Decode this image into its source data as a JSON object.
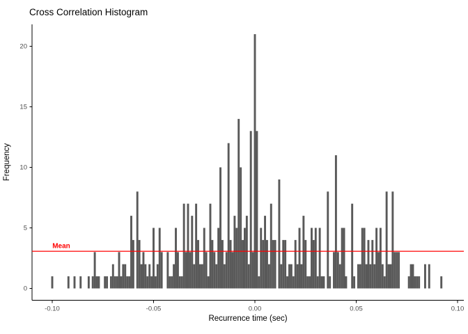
{
  "title": "Cross Correlation Histogram",
  "colors": {
    "bar": "#595959",
    "mean_line": "#FF0000",
    "mean_label": "#FF0000",
    "axis_line": "#000000",
    "tick_label": "#4D4D4D",
    "title_text": "#000000",
    "background": "#FFFFFF"
  },
  "chart_data": {
    "type": "bar",
    "subtype": "histogram",
    "title": "Cross Correlation Histogram",
    "xlabel": "Recurrence time (sec)",
    "ylabel": "Frequency",
    "grid": "off",
    "legend": "none",
    "bin_width": 0.001,
    "xlim": [
      -0.11,
      0.103
    ],
    "ylim": [
      0,
      21.8
    ],
    "x_ticks": [
      {
        "value": -0.1,
        "label": "-0.10"
      },
      {
        "value": -0.05,
        "label": "-0.05"
      },
      {
        "value": 0.0,
        "label": "0.00"
      },
      {
        "value": 0.05,
        "label": "0.05"
      },
      {
        "value": 0.1,
        "label": "0.10"
      }
    ],
    "y_ticks": [
      {
        "value": 0,
        "label": "0"
      },
      {
        "value": 5,
        "label": "5"
      },
      {
        "value": 10,
        "label": "10"
      },
      {
        "value": 15,
        "label": "15"
      },
      {
        "value": 20,
        "label": "20"
      }
    ],
    "mean": {
      "label": "Mean",
      "value": 3.07
    },
    "bins": [
      [
        -0.1,
        1
      ],
      [
        -0.092,
        1
      ],
      [
        -0.089,
        1
      ],
      [
        -0.086,
        1
      ],
      [
        -0.082,
        1
      ],
      [
        -0.08,
        1
      ],
      [
        -0.079,
        3
      ],
      [
        -0.078,
        1
      ],
      [
        -0.077,
        1
      ],
      [
        -0.074,
        1
      ],
      [
        -0.073,
        1
      ],
      [
        -0.071,
        1
      ],
      [
        -0.07,
        2
      ],
      [
        -0.069,
        1
      ],
      [
        -0.068,
        1
      ],
      [
        -0.067,
        3
      ],
      [
        -0.066,
        1
      ],
      [
        -0.065,
        2
      ],
      [
        -0.064,
        2
      ],
      [
        -0.063,
        1
      ],
      [
        -0.062,
        1
      ],
      [
        -0.061,
        6
      ],
      [
        -0.06,
        4
      ],
      [
        -0.058,
        8
      ],
      [
        -0.057,
        4
      ],
      [
        -0.056,
        2
      ],
      [
        -0.055,
        3
      ],
      [
        -0.054,
        2
      ],
      [
        -0.053,
        1
      ],
      [
        -0.052,
        2
      ],
      [
        -0.051,
        1
      ],
      [
        -0.05,
        5
      ],
      [
        -0.049,
        1
      ],
      [
        -0.048,
        2
      ],
      [
        -0.047,
        5
      ],
      [
        -0.046,
        3
      ],
      [
        -0.043,
        3
      ],
      [
        -0.042,
        1
      ],
      [
        -0.041,
        1
      ],
      [
        -0.04,
        2
      ],
      [
        -0.039,
        5
      ],
      [
        -0.038,
        3
      ],
      [
        -0.037,
        1
      ],
      [
        -0.036,
        1
      ],
      [
        -0.035,
        7
      ],
      [
        -0.034,
        3
      ],
      [
        -0.033,
        7
      ],
      [
        -0.032,
        3
      ],
      [
        -0.031,
        6
      ],
      [
        -0.03,
        2
      ],
      [
        -0.029,
        7
      ],
      [
        -0.028,
        4
      ],
      [
        -0.027,
        2
      ],
      [
        -0.026,
        2
      ],
      [
        -0.025,
        5
      ],
      [
        -0.024,
        3
      ],
      [
        -0.023,
        1
      ],
      [
        -0.022,
        7
      ],
      [
        -0.021,
        4
      ],
      [
        -0.02,
        3
      ],
      [
        -0.019,
        2
      ],
      [
        -0.018,
        5
      ],
      [
        -0.017,
        10
      ],
      [
        -0.016,
        4
      ],
      [
        -0.015,
        2
      ],
      [
        -0.014,
        3
      ],
      [
        -0.013,
        12
      ],
      [
        -0.012,
        4
      ],
      [
        -0.011,
        3
      ],
      [
        -0.01,
        6
      ],
      [
        -0.009,
        5
      ],
      [
        -0.008,
        14
      ],
      [
        -0.007,
        10
      ],
      [
        -0.006,
        4
      ],
      [
        -0.005,
        5
      ],
      [
        -0.004,
        6
      ],
      [
        -0.003,
        2
      ],
      [
        -0.002,
        13
      ],
      [
        -0.001,
        3
      ],
      [
        0.0,
        21
      ],
      [
        0.001,
        13
      ],
      [
        0.002,
        1
      ],
      [
        0.003,
        5
      ],
      [
        0.004,
        4
      ],
      [
        0.005,
        6
      ],
      [
        0.006,
        4
      ],
      [
        0.007,
        2
      ],
      [
        0.008,
        7
      ],
      [
        0.009,
        4
      ],
      [
        0.01,
        4
      ],
      [
        0.012,
        9
      ],
      [
        0.013,
        2
      ],
      [
        0.014,
        4
      ],
      [
        0.015,
        4
      ],
      [
        0.016,
        1
      ],
      [
        0.017,
        2
      ],
      [
        0.018,
        2
      ],
      [
        0.019,
        1
      ],
      [
        0.02,
        4
      ],
      [
        0.021,
        2
      ],
      [
        0.022,
        5
      ],
      [
        0.023,
        2
      ],
      [
        0.024,
        6
      ],
      [
        0.025,
        4
      ],
      [
        0.026,
        1
      ],
      [
        0.027,
        1
      ],
      [
        0.028,
        5
      ],
      [
        0.029,
        4
      ],
      [
        0.03,
        5
      ],
      [
        0.031,
        1
      ],
      [
        0.032,
        5
      ],
      [
        0.033,
        1
      ],
      [
        0.034,
        1
      ],
      [
        0.036,
        8
      ],
      [
        0.037,
        1
      ],
      [
        0.039,
        3
      ],
      [
        0.04,
        11
      ],
      [
        0.041,
        3
      ],
      [
        0.042,
        2
      ],
      [
        0.043,
        5
      ],
      [
        0.044,
        5
      ],
      [
        0.045,
        1
      ],
      [
        0.048,
        7
      ],
      [
        0.049,
        1
      ],
      [
        0.051,
        2
      ],
      [
        0.052,
        2
      ],
      [
        0.053,
        5
      ],
      [
        0.054,
        5
      ],
      [
        0.055,
        2
      ],
      [
        0.056,
        4
      ],
      [
        0.057,
        2
      ],
      [
        0.058,
        4
      ],
      [
        0.059,
        2
      ],
      [
        0.06,
        5
      ],
      [
        0.061,
        3
      ],
      [
        0.062,
        5
      ],
      [
        0.063,
        2
      ],
      [
        0.064,
        1
      ],
      [
        0.065,
        8
      ],
      [
        0.066,
        2
      ],
      [
        0.067,
        2
      ],
      [
        0.068,
        8
      ],
      [
        0.069,
        3
      ],
      [
        0.07,
        3
      ],
      [
        0.071,
        3
      ],
      [
        0.076,
        1
      ],
      [
        0.077,
        2
      ],
      [
        0.078,
        2
      ],
      [
        0.079,
        1
      ],
      [
        0.08,
        1
      ],
      [
        0.081,
        1
      ],
      [
        0.084,
        2
      ],
      [
        0.086,
        2
      ],
      [
        0.092,
        1
      ]
    ]
  }
}
